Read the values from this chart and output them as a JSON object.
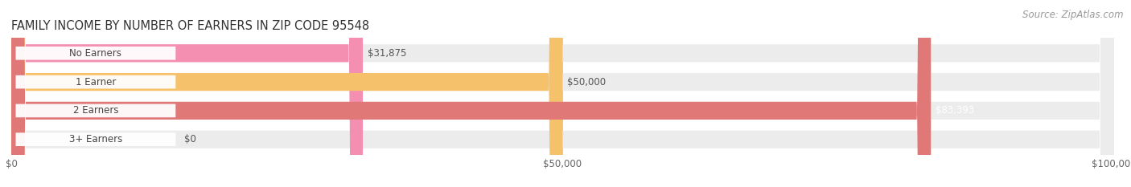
{
  "title": "FAMILY INCOME BY NUMBER OF EARNERS IN ZIP CODE 95548",
  "source": "Source: ZipAtlas.com",
  "categories": [
    "No Earners",
    "1 Earner",
    "2 Earners",
    "3+ Earners"
  ],
  "values": [
    31875,
    50000,
    83393,
    0
  ],
  "bar_colors": [
    "#f48fb1",
    "#f5c26b",
    "#e07878",
    "#a8c4e0"
  ],
  "bar_bg_color": "#ececec",
  "value_text_colors": [
    "#555555",
    "#555555",
    "#ffffff",
    "#555555"
  ],
  "xlim": [
    0,
    100000
  ],
  "xticks": [
    0,
    50000,
    100000
  ],
  "xtick_labels": [
    "$0",
    "$50,000",
    "$100,000"
  ],
  "background_color": "#ffffff",
  "title_fontsize": 10.5,
  "tick_fontsize": 8.5,
  "label_fontsize": 8.5,
  "value_fontsize": 8.5,
  "source_fontsize": 8.5,
  "bar_height": 0.62,
  "bar_gap": 1.0,
  "n_bars": 4
}
